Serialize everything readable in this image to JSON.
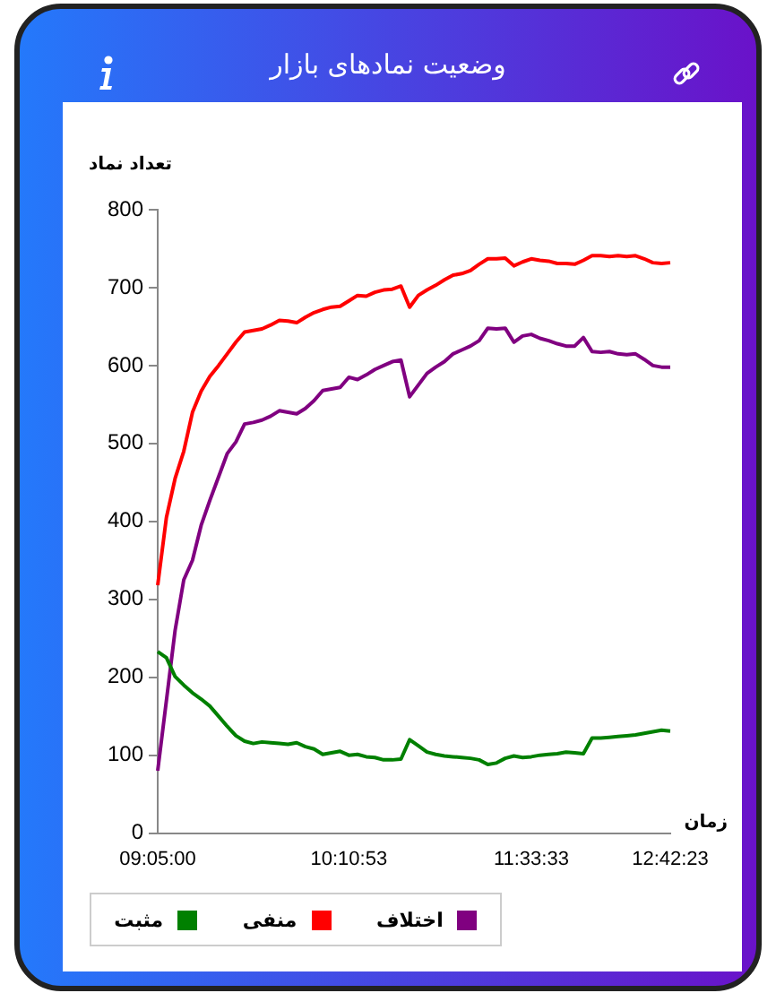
{
  "chart_data": {
    "type": "line",
    "title": "وضعیت نمادهای بازار",
    "ylabel": "تعداد نماد",
    "xlabel": "زمان",
    "categories": [
      "09:05:00",
      null,
      null,
      null,
      null,
      null,
      null,
      null,
      null,
      null,
      null,
      null,
      null,
      null,
      null,
      null,
      null,
      null,
      null,
      null,
      null,
      null,
      "10:10:53",
      null,
      null,
      null,
      null,
      null,
      null,
      null,
      null,
      null,
      null,
      null,
      null,
      null,
      null,
      null,
      null,
      null,
      null,
      null,
      null,
      "11:33:33",
      null,
      null,
      null,
      null,
      null,
      null,
      null,
      null,
      null,
      null,
      null,
      null,
      null,
      null,
      null,
      "12:42:23"
    ],
    "series": [
      {
        "name": "مثبت",
        "color": "#008000",
        "values": [
          233,
          225,
          201,
          190,
          180,
          172,
          163,
          150,
          137,
          125,
          118,
          115,
          117,
          116,
          115,
          114,
          116,
          111,
          108,
          101,
          103,
          105,
          100,
          101,
          98,
          97,
          94,
          94,
          95,
          120,
          112,
          104,
          101,
          99,
          98,
          97,
          96,
          94,
          88,
          90,
          96,
          99,
          97,
          98,
          100,
          101,
          102,
          104,
          103,
          102,
          122,
          122,
          123,
          124,
          125,
          126,
          128,
          130,
          132,
          131
        ]
      },
      {
        "name": "منفی",
        "color": "#ff0000",
        "values": [
          318,
          405,
          455,
          490,
          540,
          567,
          586,
          600,
          615,
          630,
          643,
          645,
          647,
          652,
          658,
          657,
          655,
          662,
          668,
          672,
          675,
          676,
          683,
          690,
          689,
          694,
          697,
          698,
          702,
          675,
          690,
          697,
          703,
          710,
          716,
          718,
          722,
          730,
          737,
          737,
          738,
          728,
          733,
          737,
          735,
          734,
          731,
          731,
          730,
          735,
          741,
          741,
          740,
          741,
          740,
          741,
          737,
          732,
          731,
          732
        ]
      },
      {
        "name": "اختلاف",
        "color": "#800080",
        "values": [
          80,
          170,
          260,
          325,
          350,
          395,
          427,
          457,
          487,
          502,
          525,
          527,
          530,
          535,
          542,
          540,
          538,
          545,
          555,
          568,
          570,
          572,
          585,
          582,
          588,
          595,
          600,
          605,
          607,
          560,
          575,
          590,
          598,
          605,
          615,
          620,
          625,
          632,
          648,
          647,
          648,
          630,
          638,
          640,
          635,
          632,
          628,
          625,
          625,
          636,
          618,
          617,
          618,
          615,
          614,
          615,
          608,
          600,
          598,
          598
        ]
      }
    ],
    "ylim": [
      0,
      800
    ],
    "yticks": [
      0,
      100,
      200,
      300,
      400,
      500,
      600,
      700,
      800
    ],
    "grid": false,
    "legend": "bottom left",
    "marker": "none",
    "line_style": "solid"
  }
}
